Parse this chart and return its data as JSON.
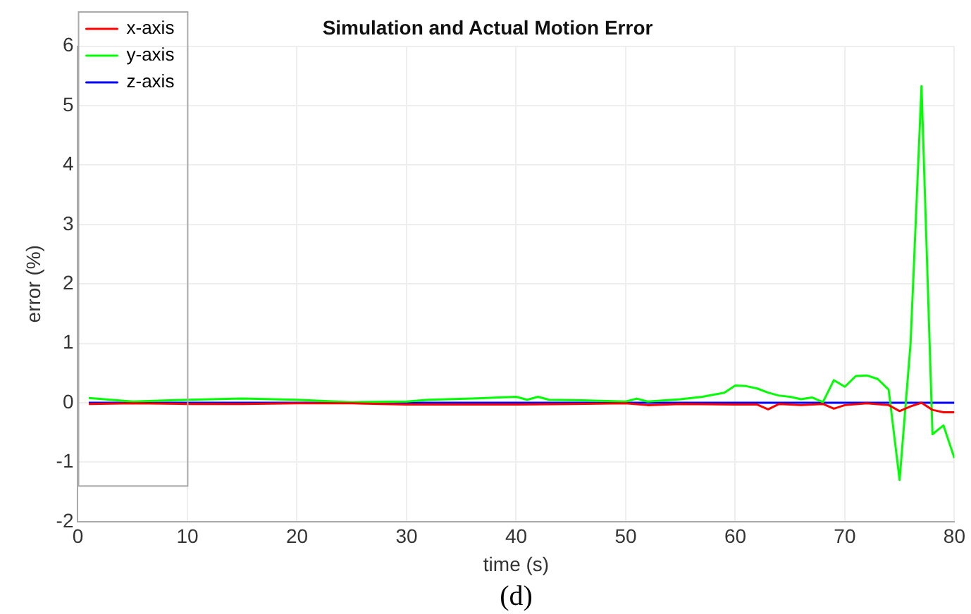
{
  "chart_data": {
    "type": "line",
    "title": "Simulation and Actual Motion Error",
    "xlabel": "time (s)",
    "ylabel": "error (%)",
    "annotations": [
      "(d)"
    ],
    "xlim": [
      0,
      80
    ],
    "xticks": [
      0,
      10,
      20,
      30,
      40,
      50,
      60,
      70,
      80
    ],
    "ylim": [
      -2,
      6
    ],
    "yticks": [
      -2,
      -1,
      0,
      1,
      2,
      3,
      4,
      5,
      6
    ],
    "grid": true,
    "legend": "top left",
    "marker": "none",
    "line_style": "solid",
    "series": [
      {
        "name": "x-axis",
        "color": "#ff0000",
        "x": [
          1,
          5,
          10,
          15,
          20,
          25,
          30,
          35,
          40,
          45,
          50,
          52,
          55,
          60,
          62,
          63,
          64,
          66,
          68,
          69,
          70,
          72,
          74,
          75,
          76,
          77,
          78,
          79,
          80
        ],
        "values": [
          -0.02,
          -0.01,
          -0.02,
          -0.02,
          -0.01,
          -0.01,
          -0.03,
          -0.03,
          -0.03,
          -0.02,
          -0.01,
          -0.04,
          -0.02,
          -0.03,
          -0.03,
          -0.11,
          -0.02,
          -0.04,
          -0.02,
          -0.1,
          -0.04,
          -0.01,
          -0.04,
          -0.14,
          -0.06,
          0,
          -0.12,
          -0.16,
          -0.16
        ]
      },
      {
        "name": "y-axis",
        "color": "#00ff00",
        "x": [
          1,
          5,
          10,
          15,
          20,
          25,
          30,
          32,
          36,
          40,
          41,
          42,
          43,
          46,
          50,
          51,
          52,
          55,
          57,
          59,
          60,
          61,
          62,
          63,
          64,
          65,
          66,
          67,
          68,
          69,
          70,
          71,
          72,
          73,
          74,
          75,
          76,
          77,
          78,
          79,
          80
        ],
        "values": [
          0.08,
          0.02,
          0.05,
          0.07,
          0.05,
          0.01,
          0.02,
          0.05,
          0.07,
          0.1,
          0.05,
          0.1,
          0.05,
          0.04,
          0.02,
          0.07,
          0.02,
          0.06,
          0.1,
          0.17,
          0.29,
          0.28,
          0.24,
          0.17,
          0.12,
          0.1,
          0.06,
          0.09,
          0.01,
          0.38,
          0.27,
          0.45,
          0.46,
          0.4,
          0.22,
          -1.3,
          1,
          5.33,
          -0.53,
          -0.38,
          -0.93
        ]
      },
      {
        "name": "z-axis",
        "color": "#0000ff",
        "x": [
          1,
          80
        ],
        "values": [
          0,
          0
        ]
      }
    ]
  }
}
